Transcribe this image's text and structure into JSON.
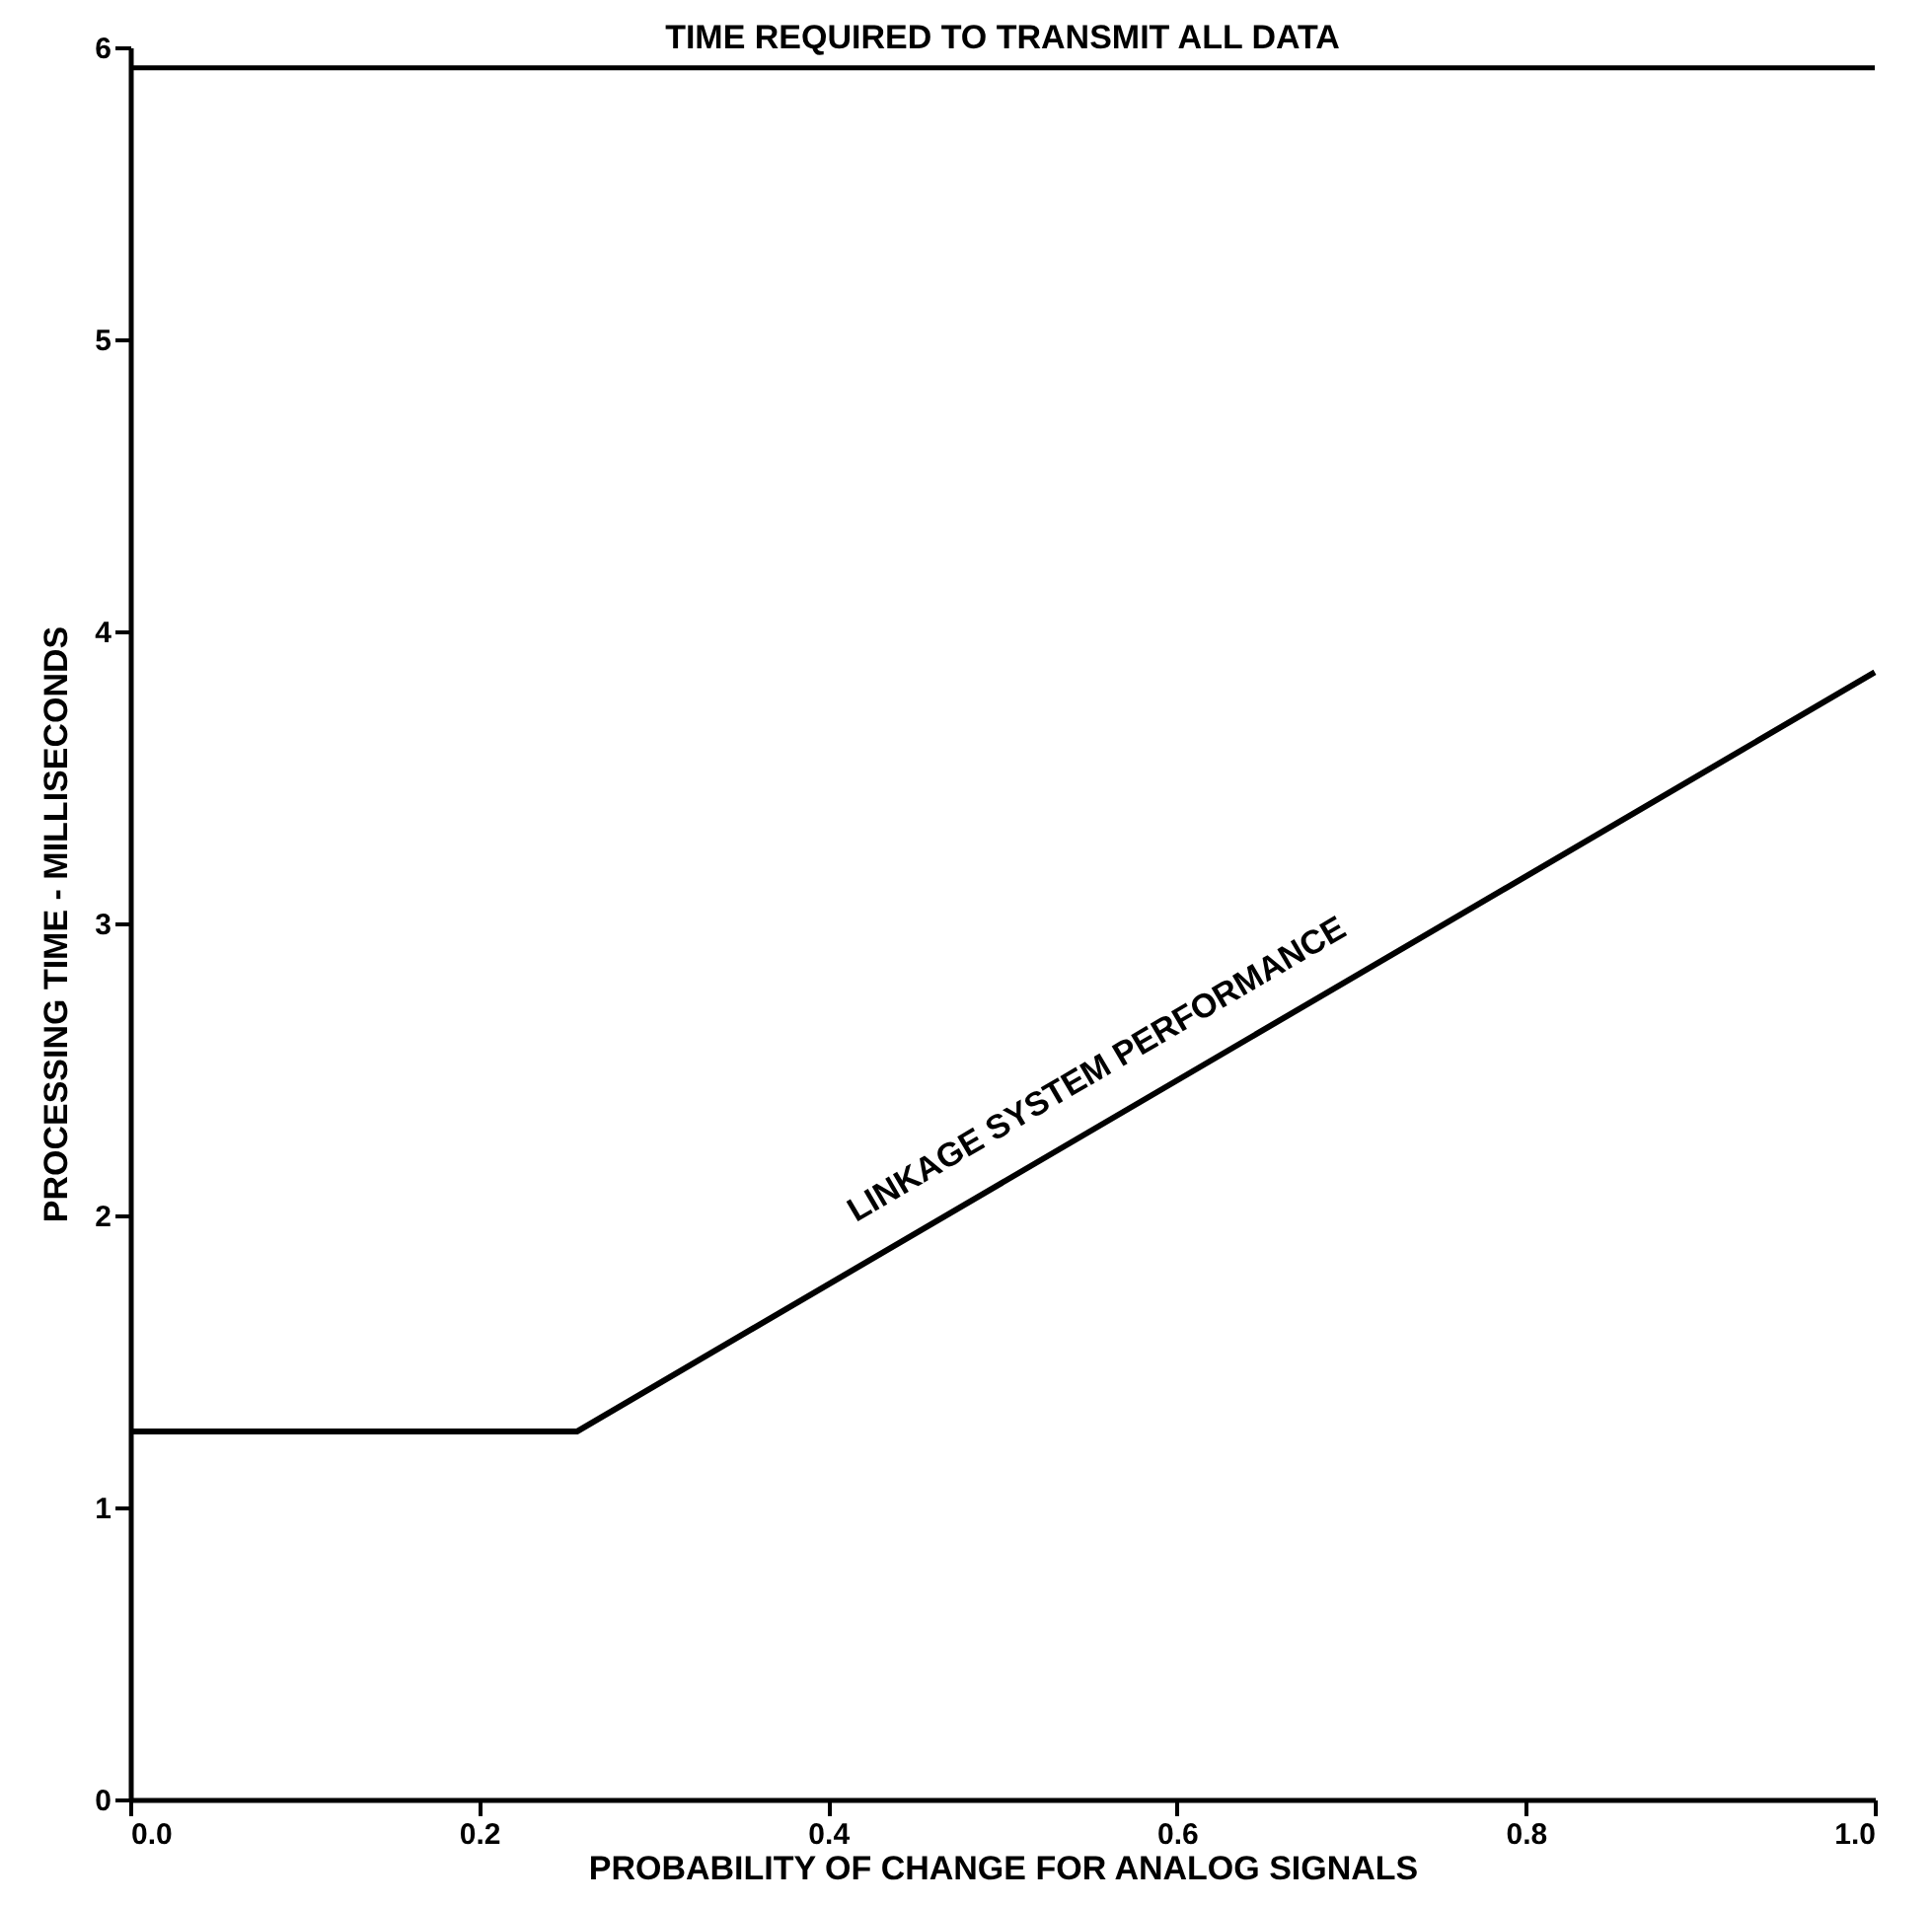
{
  "chart_data": {
    "type": "line",
    "xlabel": "PROBABILITY OF CHANGE FOR ANALOG SIGNALS",
    "ylabel": "PROCESSING TIME - MILLISECONDS",
    "xlim": [
      0,
      1.0
    ],
    "ylim": [
      0,
      6
    ],
    "xticks": [
      {
        "value": 0,
        "label": "0.0"
      },
      {
        "value": 0.2,
        "label": "0.2"
      },
      {
        "value": 0.4,
        "label": "0.4"
      },
      {
        "value": 0.6,
        "label": "0.6"
      },
      {
        "value": 0.8,
        "label": "0.8"
      },
      {
        "value": 1.0,
        "label": "1.0"
      }
    ],
    "yticks": [
      0,
      1,
      2,
      3,
      4,
      5,
      6
    ],
    "series": [
      {
        "name": "LINKAGE SYSTEM PERFORMANCE",
        "color": "#000000",
        "x": [
          0,
          0.256,
          1.0
        ],
        "values": [
          1.26,
          1.26,
          3.86
        ]
      }
    ],
    "ref_lines": [
      {
        "axis": "y",
        "value": 5.93,
        "label": "TIME REQUIRED TO TRANSMIT ALL DATA",
        "color": "#000000",
        "line_style": "solid"
      }
    ],
    "grid": false,
    "marker": "none",
    "line_style": "solid"
  }
}
